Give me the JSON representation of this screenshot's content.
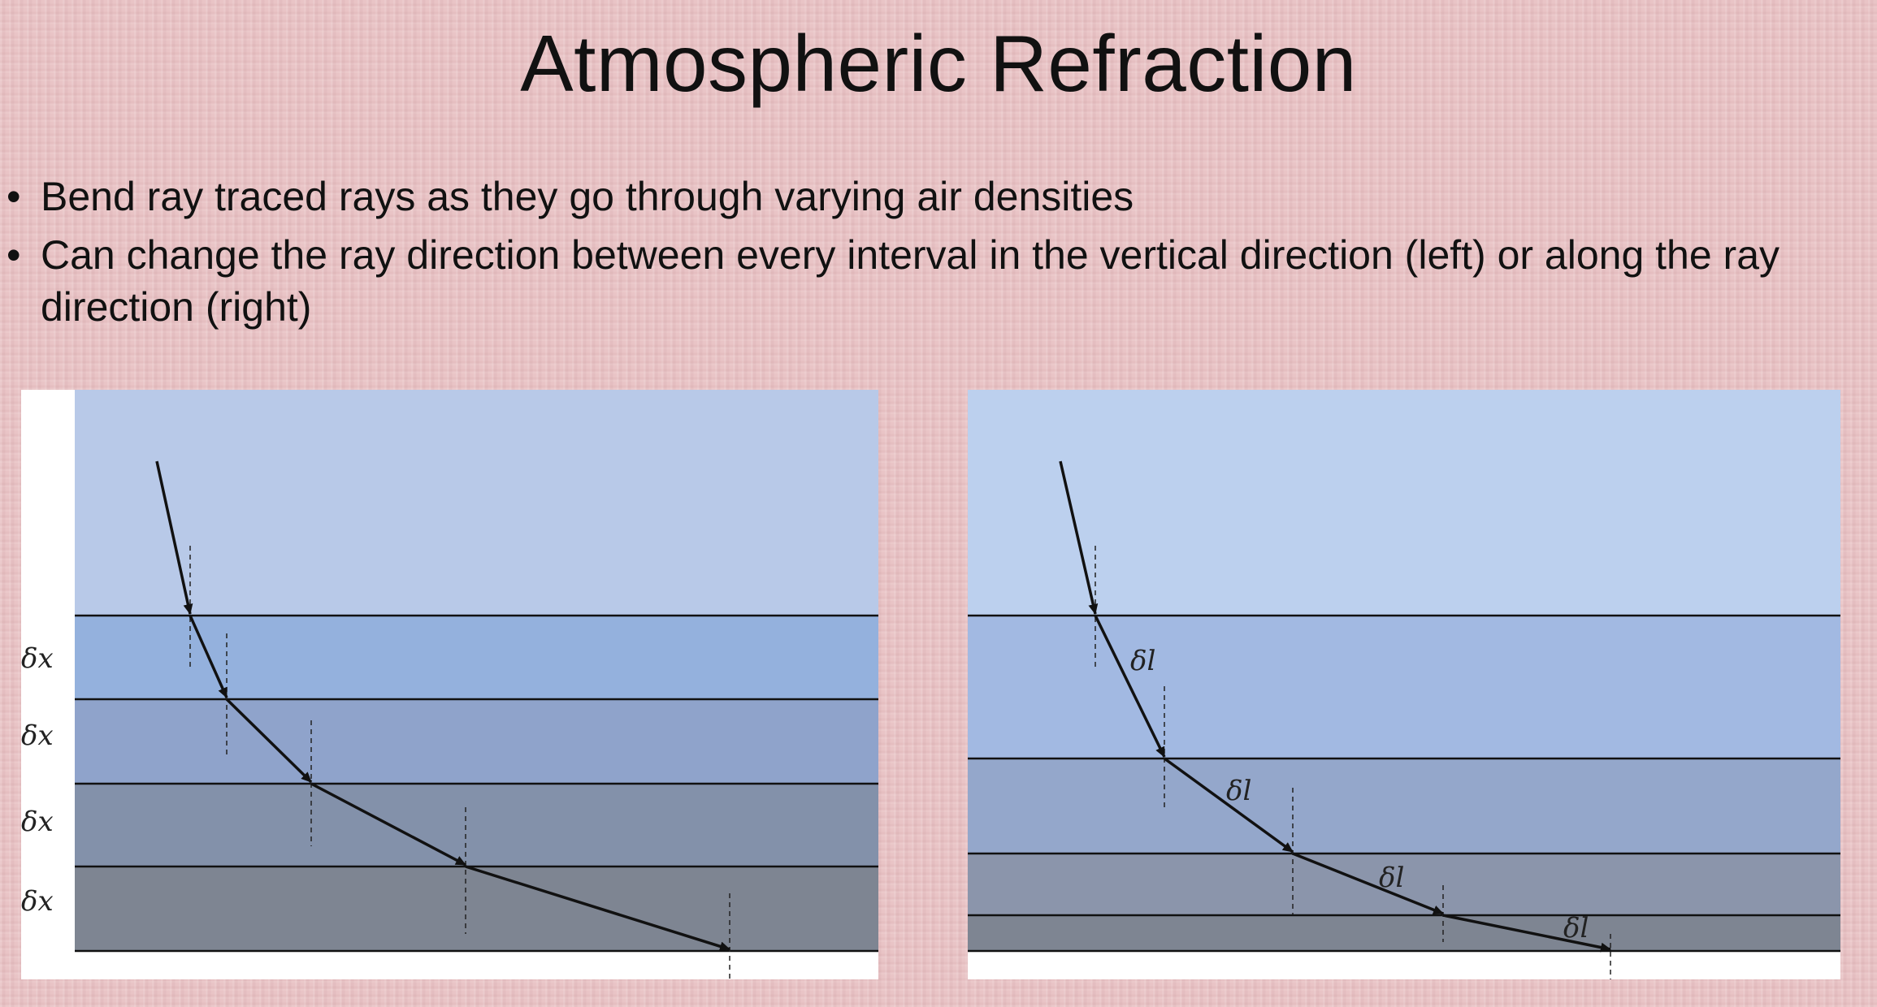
{
  "slide": {
    "title": "Atmospheric Refraction",
    "bullets": [
      "Bend ray traced rays as they go through varying air densities",
      "Can change the ray direction between every interval in the vertical direction (left) or along the ray direction (right)"
    ]
  },
  "left_diagram": {
    "interval_labels": [
      "δx",
      "δx",
      "δx",
      "δx"
    ]
  },
  "right_diagram": {
    "step_labels": [
      "δl",
      "δl",
      "δl",
      "δl"
    ]
  },
  "colors": {
    "sky": "#b8c9e8",
    "layer_1": "#94b1dd",
    "layer_2": "#8fa3cb",
    "layer_3": "#8391aa",
    "layer_4": "#7e8592",
    "right_sky": "#bcd0ee",
    "right_layer_1": "#a2b9e2",
    "right_layer_2": "#94a7cb",
    "right_layer_3": "#8b95ab",
    "line": "#111111"
  }
}
